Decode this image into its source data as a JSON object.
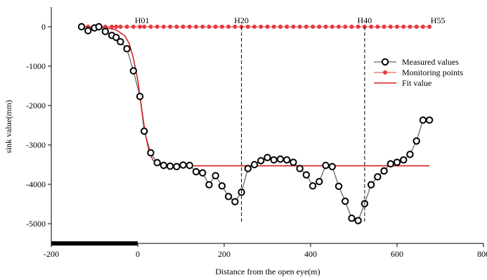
{
  "chart_data": {
    "type": "line",
    "title": "",
    "xlabel": "Distance from the open eye(m)",
    "ylabel": "sink value(mm)",
    "xlim": [
      -200,
      800
    ],
    "ylim": [
      -5500,
      500
    ],
    "x_ticks": [
      "-200",
      "0",
      "200",
      "400",
      "600",
      "800"
    ],
    "y_ticks": [
      "0",
      "-1000",
      "-2000",
      "-3000",
      "-4000",
      "-5000"
    ],
    "x_tick_values": [
      -200,
      0,
      200,
      400,
      600,
      800
    ],
    "y_tick_values": [
      0,
      -1000,
      -2000,
      -3000,
      -4000,
      -5000
    ],
    "legend": {
      "placement": "top-right",
      "entries": [
        "Measured values",
        "Monitoring points",
        "Fit value"
      ]
    },
    "colors": {
      "measured": "#000000",
      "measured_line": "#666666",
      "monitoring": "#e8383d",
      "fit": "#d62020"
    },
    "annotations": [
      {
        "text": "H01",
        "x": 10,
        "y": 0
      },
      {
        "text": "H20",
        "x": 240,
        "y": 0
      },
      {
        "text": "H40",
        "x": 525,
        "y": 0
      },
      {
        "text": "H55",
        "x": 675,
        "y": 0
      }
    ],
    "vertical_lines": [
      240,
      525
    ],
    "highlight_segment": [
      -200,
      0
    ],
    "series": [
      {
        "name": "Measured values",
        "x": [
          -130,
          -115,
          -100,
          -90,
          -75,
          -60,
          -50,
          -40,
          -25,
          -10,
          5,
          15,
          30,
          45,
          60,
          75,
          90,
          105,
          120,
          135,
          150,
          165,
          180,
          195,
          210,
          225,
          240,
          255,
          270,
          285,
          300,
          315,
          330,
          345,
          360,
          375,
          390,
          405,
          420,
          435,
          450,
          465,
          480,
          495,
          510,
          525,
          540,
          555,
          570,
          585,
          600,
          615,
          630,
          645,
          660,
          675
        ],
        "y": [
          0,
          -100,
          -30,
          0,
          -120,
          -220,
          -270,
          -380,
          -560,
          -1120,
          -1770,
          -2650,
          -3200,
          -3450,
          -3520,
          -3540,
          -3550,
          -3510,
          -3520,
          -3680,
          -3710,
          -4010,
          -3780,
          -4040,
          -4310,
          -4440,
          -4200,
          -3600,
          -3500,
          -3400,
          -3320,
          -3380,
          -3360,
          -3380,
          -3440,
          -3600,
          -3760,
          -4040,
          -3930,
          -3520,
          -3550,
          -4050,
          -4430,
          -4860,
          -4920,
          -4490,
          -4010,
          -3810,
          -3660,
          -3480,
          -3440,
          -3380,
          -3240,
          -2900,
          -2370,
          -2370
        ]
      },
      {
        "name": "Monitoring points",
        "x": [
          -130,
          -115,
          -100,
          -90,
          -75,
          -60,
          -50,
          -40,
          -25,
          -10,
          5,
          15,
          30,
          45,
          60,
          75,
          90,
          105,
          120,
          135,
          150,
          165,
          180,
          195,
          210,
          225,
          240,
          255,
          270,
          285,
          300,
          315,
          330,
          345,
          360,
          375,
          390,
          405,
          420,
          435,
          450,
          465,
          480,
          495,
          510,
          525,
          540,
          555,
          570,
          585,
          600,
          615,
          630,
          645,
          660,
          675
        ],
        "y": [
          0,
          0,
          0,
          0,
          0,
          0,
          0,
          0,
          0,
          0,
          0,
          0,
          0,
          0,
          0,
          0,
          0,
          0,
          0,
          0,
          0,
          0,
          0,
          0,
          0,
          0,
          0,
          0,
          0,
          0,
          0,
          0,
          0,
          0,
          0,
          0,
          0,
          0,
          0,
          0,
          0,
          0,
          0,
          0,
          0,
          0,
          0,
          0,
          0,
          0,
          0,
          0,
          0,
          0,
          0,
          0
        ]
      },
      {
        "name": "Fit value",
        "x": [
          -130,
          -100,
          -70,
          -50,
          -30,
          -20,
          -10,
          0,
          5,
          10,
          15,
          20,
          25,
          30,
          35,
          40,
          50,
          60,
          80,
          100,
          150,
          200,
          300,
          400,
          500,
          600,
          675
        ],
        "y": [
          0,
          -5,
          -30,
          -80,
          -230,
          -420,
          -800,
          -1350,
          -1750,
          -2150,
          -2530,
          -2850,
          -3100,
          -3270,
          -3380,
          -3440,
          -3495,
          -3515,
          -3525,
          -3530,
          -3530,
          -3530,
          -3530,
          -3530,
          -3530,
          -3530,
          -3530
        ]
      }
    ]
  }
}
